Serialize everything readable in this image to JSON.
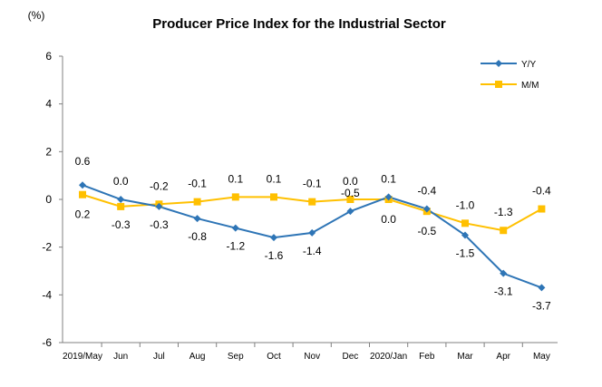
{
  "chart_data": {
    "type": "line",
    "title": "Producer Price Index for the Industrial Sector",
    "unit_label": "(%)",
    "xlabel": "",
    "ylabel": "",
    "ylim": [
      -6,
      6
    ],
    "yticks": [
      6,
      4,
      2,
      0,
      -2,
      -4,
      -6
    ],
    "categories": [
      "2019/May",
      "Jun",
      "Jul",
      "Aug",
      "Sep",
      "Oct",
      "Nov",
      "Dec",
      "2020/Jan",
      "Feb",
      "Mar",
      "Apr",
      "May"
    ],
    "series": [
      {
        "name": "Y/Y",
        "color": "#2E75B6",
        "marker": "diamond",
        "values": [
          0.6,
          0.0,
          -0.3,
          -0.8,
          -1.2,
          -1.6,
          -1.4,
          -0.5,
          0.1,
          -0.4,
          -1.5,
          -3.1,
          -3.7
        ]
      },
      {
        "name": "M/M",
        "color": "#FFC000",
        "marker": "square",
        "values": [
          0.2,
          -0.3,
          -0.2,
          -0.1,
          0.1,
          0.1,
          -0.1,
          0.0,
          0.0,
          -0.5,
          -1.0,
          -1.3,
          -0.4
        ]
      }
    ],
    "data_labels": {
      "yy": [
        "0.6",
        "0.0",
        "-0.3",
        "-0.8",
        "-1.2",
        "-1.6",
        "-1.4",
        "-0.5",
        "0.1",
        "-0.4",
        "-1.5",
        "-3.1",
        "-3.7"
      ],
      "mm": [
        "0.2",
        "-0.3",
        "-0.2",
        "-0.1",
        "0.1",
        "0.1",
        "-0.1",
        "0.0",
        "0.0",
        "-0.5",
        "-1.0",
        "-1.3",
        "-0.4"
      ]
    },
    "legend_position": "top-right",
    "grid": false
  }
}
